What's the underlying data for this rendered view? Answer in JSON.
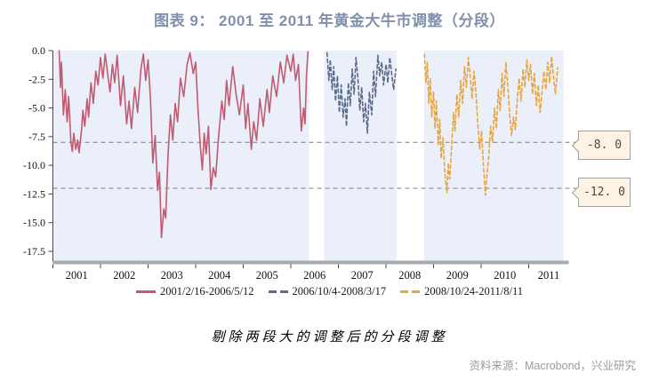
{
  "title": "图表 9：  2001 至 2011 年黄金大牛市调整（分段）",
  "caption": "剔除两段大的调整后的分段调整",
  "source": "资料来源：Macrobond，兴业研究",
  "colors": {
    "title": "#8090ac",
    "band": "#eaeffa",
    "grid": "#7f7f7f",
    "axis": "#444444",
    "axis_bar": "#a7abb1",
    "tick_label": "#111111",
    "red_series": "#c05c72",
    "blue_series": "#5c6b8a",
    "orange_series": "#e9a63e",
    "callout_bg": "#fdf2e3",
    "callout_border": "#a0a0a0",
    "callout_text": "#4a4a4a",
    "source_text": "#9b9b9b"
  },
  "annotations": [
    {
      "value": -8,
      "label": "-8. 0"
    },
    {
      "value": -12,
      "label": "-12. 0"
    }
  ],
  "legend": {
    "items": [
      {
        "label": "2001/2/16-2006/5/12",
        "color": "#c05c72",
        "style": "solid"
      },
      {
        "label": "2006/10/4-2008/3/17",
        "color": "#5c6b8a",
        "style": "dashed"
      },
      {
        "label": "2008/10/24-2011/8/11",
        "color": "#e9a63e",
        "style": "dashed"
      }
    ]
  },
  "chart_data": {
    "type": "line",
    "title": "图表 9：2001 至 2011 年黄金大牛市调整（分段）",
    "xlabel": "",
    "ylabel": "",
    "xlim": [
      2001,
      2011.85
    ],
    "ylim": [
      -18.5,
      0
    ],
    "x_ticks": [
      2001,
      2002,
      2003,
      2004,
      2005,
      2006,
      2007,
      2008,
      2009,
      2010,
      2011
    ],
    "y_ticks": [
      "0.0",
      "-2.5",
      "-5.0",
      "-7.5",
      "-10.0",
      "-12.5",
      "-15.0",
      "-17.5"
    ],
    "grid": "horizontal dashed reference lines at -8.0 and -12.0",
    "legend_position": "bottom-center",
    "plot_bands": [
      [
        2001.02,
        2006.38
      ],
      [
        2006.7,
        2008.22
      ],
      [
        2008.8,
        2011.73
      ]
    ],
    "series": [
      {
        "name": "2001/2/16-2006/5/12",
        "color": "#c05c72",
        "line_style": "solid",
        "x": [
          2001.13,
          2001.16,
          2001.18,
          2001.22,
          2001.26,
          2001.3,
          2001.33,
          2001.38,
          2001.41,
          2001.44,
          2001.48,
          2001.52,
          2001.55,
          2001.6,
          2001.63,
          2001.67,
          2001.72,
          2001.75,
          2001.8,
          2001.85,
          2001.9,
          2001.95,
          2002.0,
          2002.05,
          2002.1,
          2002.15,
          2002.2,
          2002.25,
          2002.3,
          2002.35,
          2002.42,
          2002.48,
          2002.55,
          2002.6,
          2002.65,
          2002.72,
          2002.78,
          2002.85,
          2002.9,
          2002.95,
          2003.0,
          2003.05,
          2003.1,
          2003.15,
          2003.2,
          2003.24,
          2003.28,
          2003.33,
          2003.37,
          2003.42,
          2003.47,
          2003.52,
          2003.57,
          2003.62,
          2003.68,
          2003.75,
          2003.82,
          2003.88,
          2003.95,
          2004.0,
          2004.05,
          2004.1,
          2004.14,
          2004.18,
          2004.22,
          2004.27,
          2004.32,
          2004.37,
          2004.42,
          2004.48,
          2004.55,
          2004.6,
          2004.65,
          2004.7,
          2004.78,
          2004.85,
          2004.92,
          2005.0,
          2005.05,
          2005.1,
          2005.17,
          2005.22,
          2005.28,
          2005.35,
          2005.42,
          2005.5,
          2005.55,
          2005.62,
          2005.7,
          2005.78,
          2005.85,
          2005.92,
          2006.0,
          2006.05,
          2006.1,
          2006.16,
          2006.22,
          2006.27,
          2006.3,
          2006.33,
          2006.36
        ],
        "values": [
          0,
          -3.2,
          -1.0,
          -5.6,
          -3.4,
          -6.2,
          -4.0,
          -8.0,
          -8.8,
          -7.2,
          -8.6,
          -7.8,
          -8.9,
          -7.0,
          -5.2,
          -6.6,
          -4.2,
          -5.8,
          -2.8,
          -4.6,
          -1.8,
          -3.0,
          -0.6,
          -2.4,
          -0.3,
          -2.0,
          -3.6,
          -1.2,
          -2.8,
          -0.4,
          -4.8,
          -2.2,
          -6.4,
          -4.4,
          -6.8,
          -3.2,
          -5.4,
          -1.6,
          -0.3,
          -2.6,
          -0.8,
          -4.2,
          -9.8,
          -7.4,
          -12.2,
          -10.6,
          -16.3,
          -13.8,
          -14.6,
          -9.0,
          -5.6,
          -7.8,
          -4.6,
          -6.2,
          -2.4,
          -4.0,
          -1.2,
          -0.2,
          -2.0,
          -1.0,
          -5.2,
          -8.4,
          -10.4,
          -7.2,
          -9.0,
          -6.6,
          -12.1,
          -10.2,
          -11.0,
          -7.6,
          -4.4,
          -6.0,
          -2.6,
          -4.8,
          -1.4,
          -3.8,
          -5.6,
          -3.0,
          -6.8,
          -4.6,
          -8.6,
          -6.2,
          -7.8,
          -4.2,
          -6.6,
          -3.4,
          -5.4,
          -2.2,
          -4.0,
          -1.0,
          -2.8,
          -0.4,
          -1.8,
          -0.3,
          -2.6,
          -1.2,
          -7.0,
          -5.0,
          -6.4,
          -2.0,
          -0.1
        ]
      },
      {
        "name": "2006/10/4-2008/3/17",
        "color": "#5c6b8a",
        "line_style": "dashed",
        "x": [
          2006.76,
          2006.8,
          2006.83,
          2006.87,
          2006.9,
          2006.94,
          2006.98,
          2007.02,
          2007.06,
          2007.1,
          2007.14,
          2007.17,
          2007.21,
          2007.25,
          2007.29,
          2007.33,
          2007.37,
          2007.41,
          2007.45,
          2007.49,
          2007.53,
          2007.57,
          2007.61,
          2007.65,
          2007.7,
          2007.74,
          2007.78,
          2007.83,
          2007.87,
          2007.91,
          2007.95,
          2008.0,
          2008.04,
          2008.08,
          2008.12,
          2008.16,
          2008.21
        ],
        "values": [
          -0.2,
          -2.6,
          -0.8,
          -3.4,
          -1.4,
          -4.4,
          -2.2,
          -5.4,
          -3.0,
          -5.8,
          -4.2,
          -6.6,
          -2.8,
          -4.8,
          -1.6,
          -3.8,
          -0.6,
          -2.4,
          -5.2,
          -3.2,
          -6.2,
          -4.6,
          -7.2,
          -3.6,
          -5.6,
          -1.8,
          -4.0,
          -0.4,
          -2.2,
          -1.0,
          -3.0,
          -1.2,
          -2.8,
          -0.6,
          -2.0,
          -3.4,
          -1.6
        ]
      },
      {
        "name": "2008/10/24-2011/8/11",
        "color": "#e9a63e",
        "line_style": "dashed",
        "x": [
          2008.81,
          2008.84,
          2008.87,
          2008.9,
          2008.93,
          2008.96,
          2009.0,
          2009.03,
          2009.06,
          2009.1,
          2009.13,
          2009.16,
          2009.2,
          2009.24,
          2009.28,
          2009.31,
          2009.34,
          2009.38,
          2009.42,
          2009.45,
          2009.49,
          2009.53,
          2009.57,
          2009.61,
          2009.65,
          2009.69,
          2009.73,
          2009.77,
          2009.81,
          2009.85,
          2009.89,
          2009.93,
          2009.97,
          2010.01,
          2010.05,
          2010.09,
          2010.12,
          2010.16,
          2010.2,
          2010.24,
          2010.28,
          2010.32,
          2010.36,
          2010.4,
          2010.44,
          2010.48,
          2010.52,
          2010.56,
          2010.6,
          2010.64,
          2010.68,
          2010.72,
          2010.76,
          2010.8,
          2010.84,
          2010.88,
          2010.92,
          2010.96,
          2011.0,
          2011.04,
          2011.08,
          2011.12,
          2011.16,
          2011.2,
          2011.24,
          2011.28,
          2011.32,
          2011.36,
          2011.4,
          2011.44,
          2011.48,
          2011.52,
          2011.56,
          2011.61
        ],
        "values": [
          -0.3,
          -2.8,
          -1.0,
          -4.6,
          -2.4,
          -5.8,
          -3.6,
          -6.8,
          -4.4,
          -8.2,
          -6.0,
          -9.4,
          -7.6,
          -10.8,
          -12.4,
          -9.8,
          -11.2,
          -8.4,
          -5.4,
          -7.0,
          -3.8,
          -5.8,
          -2.6,
          -4.6,
          -1.4,
          -3.2,
          -0.6,
          -2.2,
          -4.2,
          -1.8,
          -3.6,
          -6.4,
          -8.6,
          -7.0,
          -10.2,
          -12.6,
          -11.0,
          -9.2,
          -6.6,
          -8.0,
          -5.0,
          -6.8,
          -3.4,
          -5.2,
          -2.0,
          -4.0,
          -1.0,
          -3.0,
          -5.6,
          -7.4,
          -5.8,
          -6.9,
          -4.2,
          -2.4,
          -4.4,
          -1.6,
          -3.2,
          -0.8,
          -2.6,
          -1.2,
          -3.8,
          -2.0,
          -4.8,
          -3.0,
          -5.4,
          -3.6,
          -1.8,
          -3.4,
          -1.0,
          -2.8,
          -0.5,
          -2.2,
          -3.8,
          -1.5
        ]
      }
    ]
  }
}
